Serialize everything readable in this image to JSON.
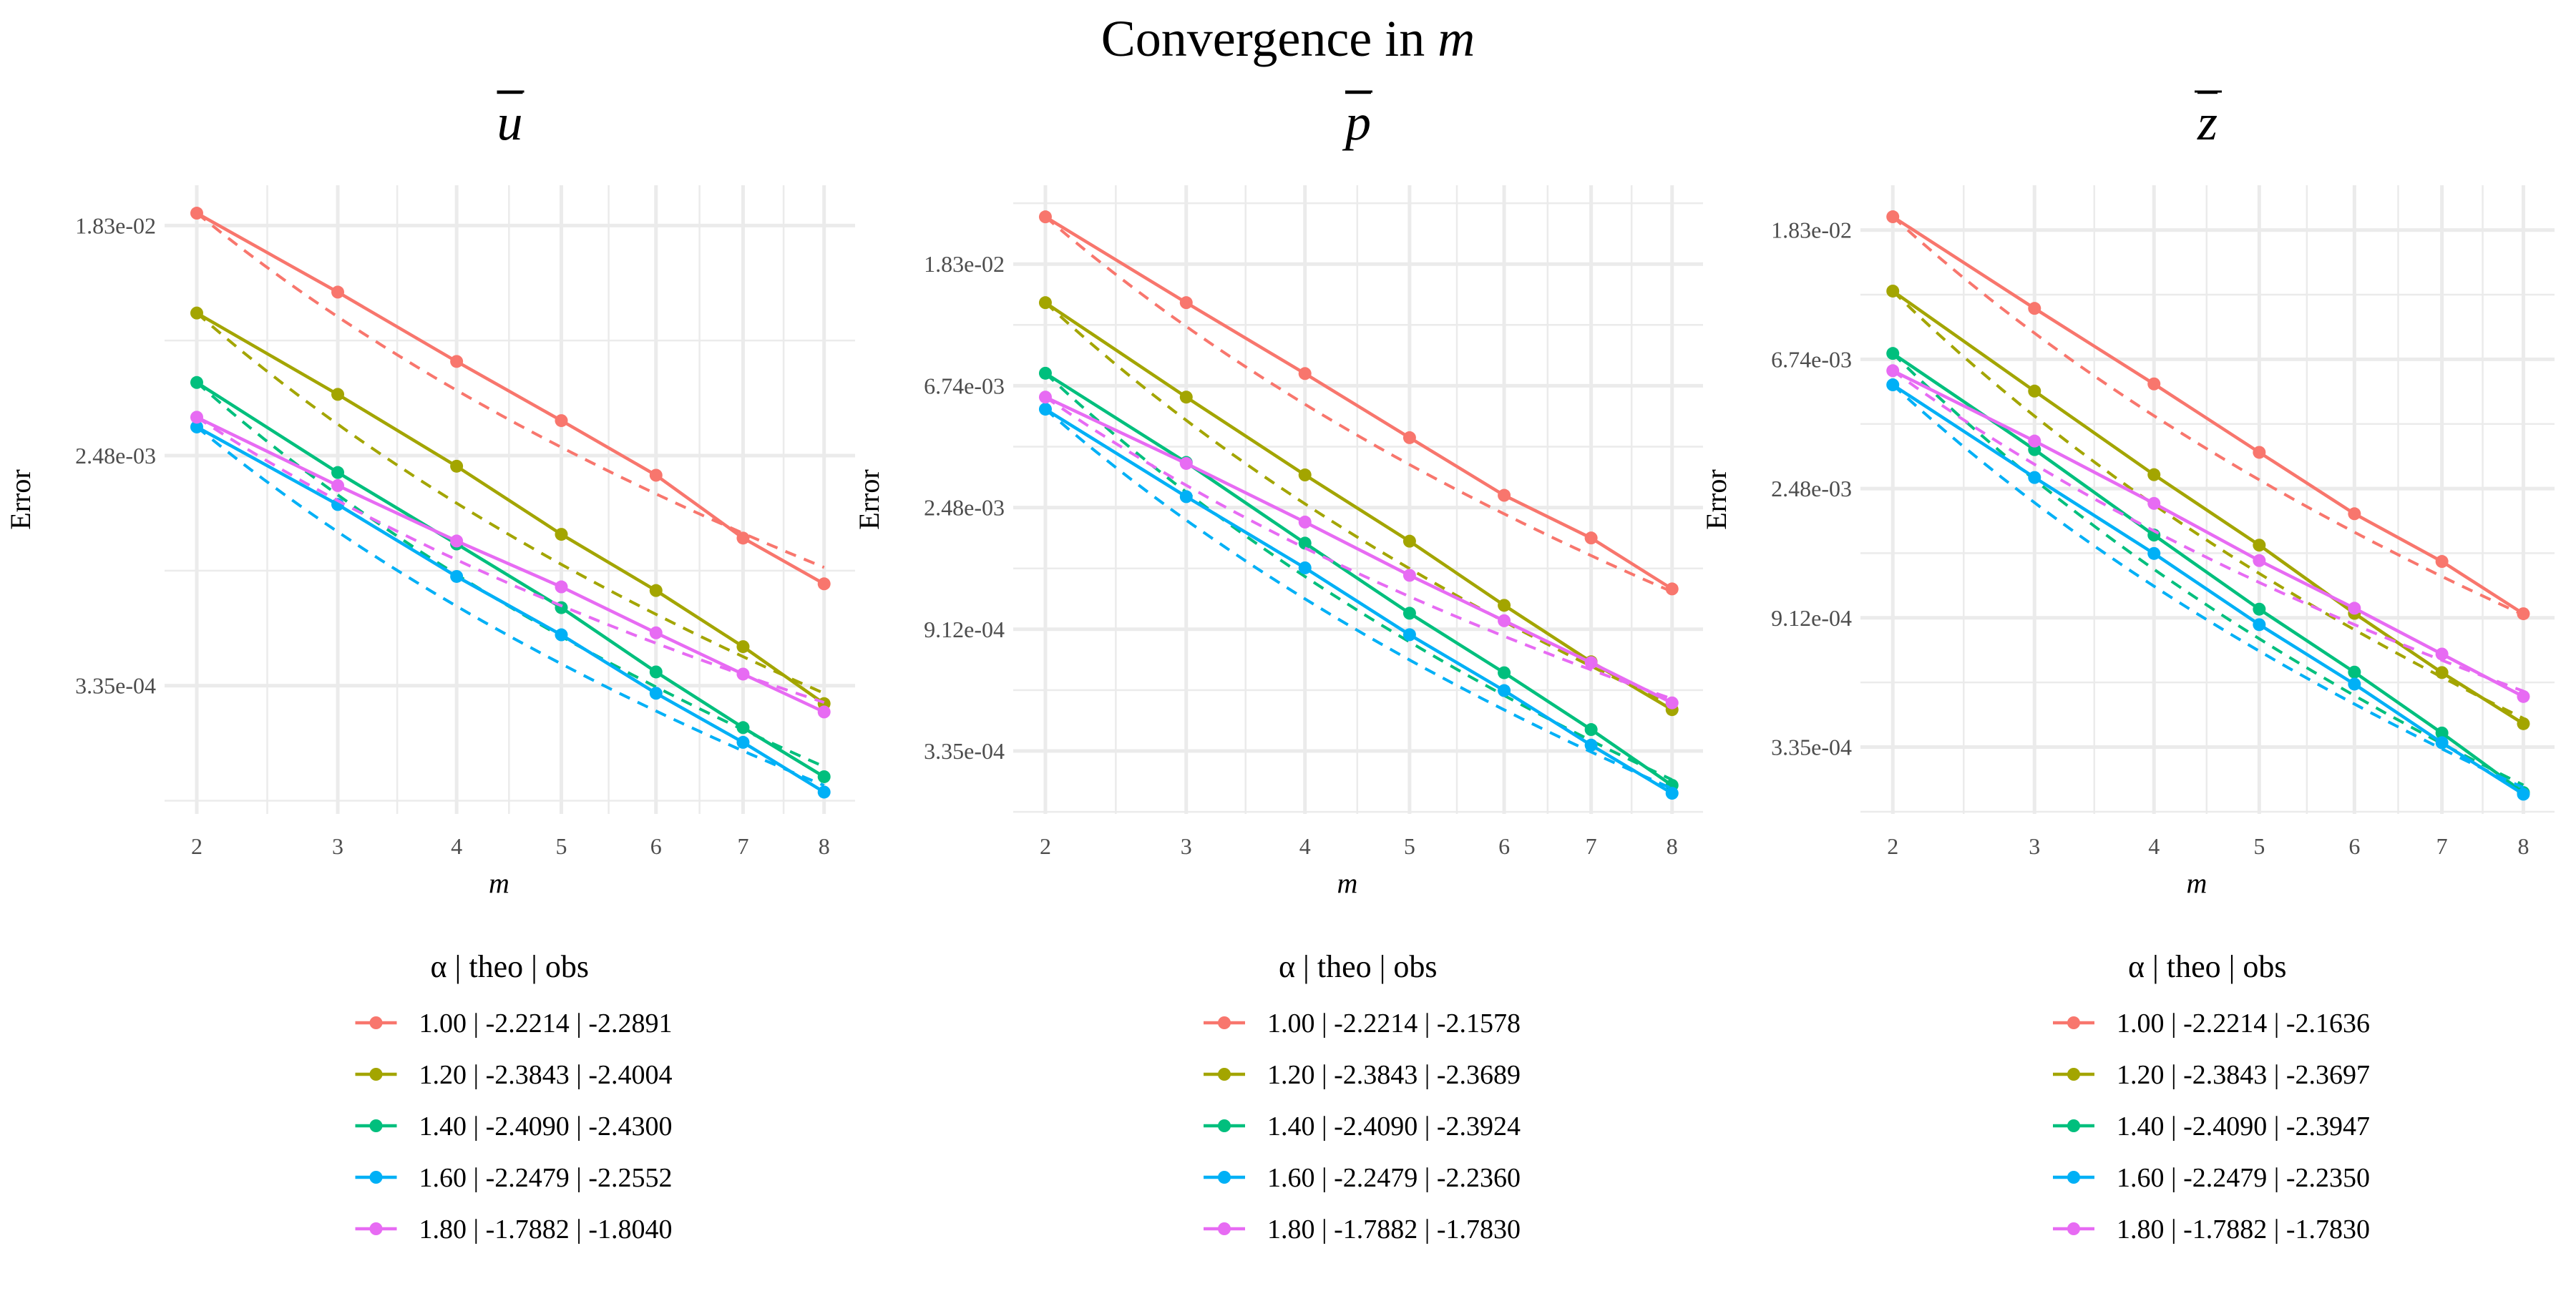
{
  "title": "Convergence in",
  "title_var": "m",
  "colors": [
    "#F8766D",
    "#A3A500",
    "#00BF7D",
    "#00B0F6",
    "#E76BF3"
  ],
  "chart_data": [
    {
      "type": "line",
      "title": "u",
      "title_style": "overline",
      "xlabel": "m",
      "ylabel": "Error",
      "x_scale": "sqrt",
      "y_scale": "log",
      "xlim": [
        1.8,
        8.4
      ],
      "ylim": [
        0.00011,
        0.026
      ],
      "grid": true,
      "legend_position": "bottom",
      "legend_title": "α  | theo  | obs",
      "x": [
        2,
        3,
        4,
        5,
        6,
        7,
        8
      ],
      "x_ticks": [
        "2",
        "3",
        "4",
        "5",
        "6",
        "7",
        "8"
      ],
      "y_ticks": [
        0.0183156,
        0.00247875,
        0.000335463
      ],
      "y_tick_labels": [
        "1.83e-02",
        "2.48e-03",
        "3.35e-04"
      ],
      "series": [
        {
          "name": "1.00 | -2.2214 | -2.2891",
          "alpha": 1.0,
          "theo": -2.2214,
          "obs": -2.2891,
          "values": [
            0.0204,
            0.01027,
            0.00562,
            0.00336,
            0.00209,
            0.00121,
            0.000813
          ]
        },
        {
          "name": "1.20 | -2.3843 | -2.4004",
          "alpha": 1.2,
          "theo": -2.3843,
          "obs": -2.4004,
          "values": [
            0.00856,
            0.00422,
            0.00226,
            0.00125,
            0.000767,
            0.000471,
            0.000287
          ]
        },
        {
          "name": "1.40 | -2.4090 | -2.4300",
          "alpha": 1.4,
          "theo": -2.409,
          "obs": -2.43,
          "values": [
            0.00468,
            0.00214,
            0.00115,
            0.000661,
            0.000378,
            0.000233,
            0.000152
          ]
        },
        {
          "name": "1.60 | -2.2479 | -2.2552",
          "alpha": 1.6,
          "theo": -2.2479,
          "obs": -2.2552,
          "values": [
            0.00318,
            0.00162,
            0.000867,
            0.000522,
            0.000314,
            0.000205,
            0.000133
          ]
        },
        {
          "name": "1.80 | -1.7882 | -1.8040",
          "alpha": 1.8,
          "theo": -1.7882,
          "obs": -1.804,
          "values": [
            0.00346,
            0.00191,
            0.00118,
            0.000792,
            0.000531,
            0.000371,
            0.000267
          ]
        }
      ]
    },
    {
      "type": "line",
      "title": "p",
      "title_style": "overline",
      "xlabel": "m",
      "ylabel": "Error",
      "x_scale": "sqrt",
      "y_scale": "log",
      "xlim": [
        1.8,
        8.4
      ],
      "ylim": [
        0.0002,
        0.035
      ],
      "grid": true,
      "legend_position": "bottom",
      "legend_title": "α  | theo  | obs",
      "x": [
        2,
        3,
        4,
        5,
        6,
        7,
        8
      ],
      "x_ticks": [
        "2",
        "3",
        "4",
        "5",
        "6",
        "7",
        "8"
      ],
      "y_ticks": [
        0.0183156,
        0.00673795,
        0.00247875,
        0.000911882,
        0.000335463
      ],
      "y_tick_labels": [
        "1.83e-02",
        "6.74e-03",
        "2.48e-03",
        "9.12e-04",
        "3.35e-04"
      ],
      "series": [
        {
          "name": "1.00 | -2.2214 | -2.1578",
          "alpha": 1.0,
          "theo": -2.2214,
          "obs": -2.1578,
          "values": [
            0.027,
            0.01334,
            0.00745,
            0.0044,
            0.00274,
            0.00193,
            0.00127
          ]
        },
        {
          "name": "1.20 | -2.3843 | -2.3689",
          "alpha": 1.2,
          "theo": -2.3843,
          "obs": -2.3689,
          "values": [
            0.01334,
            0.00614,
            0.00324,
            0.00188,
            0.00111,
            0.000698,
            0.000471
          ]
        },
        {
          "name": "1.40 | -2.4090 | -2.3924",
          "alpha": 1.4,
          "theo": -2.409,
          "obs": -2.3924,
          "values": [
            0.00747,
            0.00359,
            0.00185,
            0.00104,
            0.000638,
            0.0004,
            0.000253
          ]
        },
        {
          "name": "1.60 | -2.2479 | -2.2360",
          "alpha": 1.6,
          "theo": -2.2479,
          "obs": -2.236,
          "values": [
            0.00556,
            0.00271,
            0.00151,
            0.000872,
            0.000551,
            0.000352,
            0.000237
          ]
        },
        {
          "name": "1.80 | -1.7882 | -1.7830",
          "alpha": 1.8,
          "theo": -1.7882,
          "obs": -1.783,
          "values": [
            0.00614,
            0.00356,
            0.0022,
            0.00142,
            0.000978,
            0.000693,
            0.000498
          ]
        }
      ]
    },
    {
      "type": "line",
      "title": "z",
      "title_style": "overline",
      "xlabel": "m",
      "ylabel": "Error",
      "x_scale": "sqrt",
      "y_scale": "log",
      "xlim": [
        1.8,
        8.4
      ],
      "ylim": [
        0.0002,
        0.0259
      ],
      "grid": true,
      "legend_position": "bottom",
      "legend_title": "α  | theo  | obs",
      "x": [
        2,
        3,
        4,
        5,
        6,
        7,
        8
      ],
      "x_ticks": [
        "2",
        "3",
        "4",
        "5",
        "6",
        "7",
        "8"
      ],
      "y_ticks": [
        0.0183156,
        0.00673795,
        0.00247875,
        0.000911882,
        0.000335463
      ],
      "y_tick_labels": [
        "1.83e-02",
        "6.74e-03",
        "2.48e-03",
        "9.12e-04",
        "3.35e-04"
      ],
      "series": [
        {
          "name": "1.00 | -2.2214 | -2.1636",
          "alpha": 1.0,
          "theo": -2.2214,
          "obs": -2.1636,
          "values": [
            0.0203,
            0.00999,
            0.00557,
            0.00328,
            0.00204,
            0.00141,
            0.000941
          ]
        },
        {
          "name": "1.20 | -2.3843 | -2.3697",
          "alpha": 1.2,
          "theo": -2.3843,
          "obs": -2.3697,
          "values": [
            0.01142,
            0.00527,
            0.00276,
            0.0016,
            0.000944,
            0.000597,
            0.000402
          ]
        },
        {
          "name": "1.40 | -2.4090 | -2.3947",
          "alpha": 1.4,
          "theo": -2.409,
          "obs": -2.3947,
          "values": [
            0.00705,
            0.00335,
            0.00173,
            0.000975,
            0.000599,
            0.000374,
            0.000236
          ]
        },
        {
          "name": "1.60 | -2.2479 | -2.2350",
          "alpha": 1.6,
          "theo": -2.2479,
          "obs": -2.235,
          "values": [
            0.00553,
            0.0027,
            0.0015,
            0.000865,
            0.000546,
            0.000347,
            0.000233
          ]
        },
        {
          "name": "1.80 | -1.7882 | -1.7830",
          "alpha": 1.8,
          "theo": -1.7882,
          "obs": -1.783,
          "values": [
            0.00617,
            0.00358,
            0.00221,
            0.00142,
            0.000982,
            0.000689,
            0.000496
          ]
        }
      ]
    }
  ]
}
